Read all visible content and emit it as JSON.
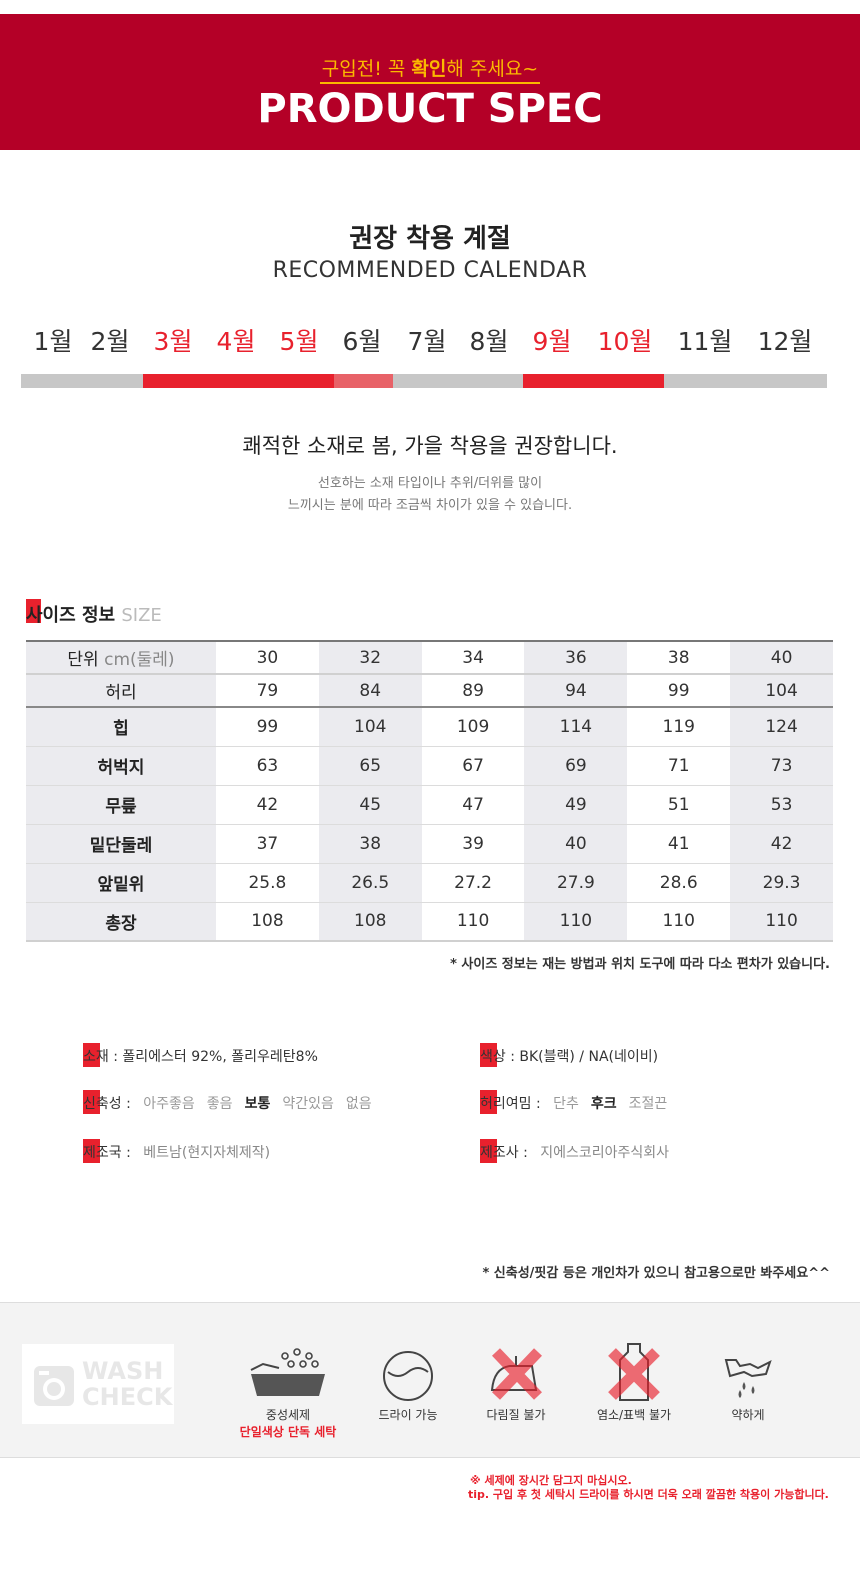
{
  "header": {
    "subtitle_a": "구입전! 꼭 ",
    "subtitle_b": "확인",
    "subtitle_c": "해 주세요~",
    "title": "PRODUCT SPEC"
  },
  "calendar": {
    "title": "권장 착용 계절",
    "subtitle": "RECOMMENDED CALENDAR",
    "months": [
      "1월",
      "2월",
      "3월",
      "4월",
      "5월",
      "6월",
      "7월",
      "8월",
      "9월",
      "10월",
      "11월",
      "12월"
    ],
    "active_months": [
      "3월",
      "4월",
      "5월",
      "9월",
      "10월"
    ],
    "colors": {
      "active": "#e8212d",
      "partial": "#e86268",
      "inactive": "#c7c7c7"
    }
  },
  "season": {
    "main": "쾌적한 소재로 봄, 가을 착용을 권장합니다.",
    "note_line1": "선호하는 소재 타입이나 추위/더위를 많이",
    "note_line2": "느끼시는 분에 따라 조금씩 차이가 있을 수 있습니다."
  },
  "size": {
    "label": "사이즈 정보",
    "label_en": "SIZE",
    "unit_label": "단위",
    "unit_value": "cm(둘레)",
    "columns": [
      "30",
      "32",
      "34",
      "36",
      "38",
      "40"
    ],
    "rows": [
      {
        "name": "허리",
        "values": [
          "79",
          "84",
          "89",
          "94",
          "99",
          "104"
        ]
      },
      {
        "name": "힙",
        "values": [
          "99",
          "104",
          "109",
          "114",
          "119",
          "124"
        ]
      },
      {
        "name": "허벅지",
        "values": [
          "63",
          "65",
          "67",
          "69",
          "71",
          "73"
        ]
      },
      {
        "name": "무릎",
        "values": [
          "42",
          "45",
          "47",
          "49",
          "51",
          "53"
        ]
      },
      {
        "name": "밑단둘레",
        "values": [
          "37",
          "38",
          "39",
          "40",
          "41",
          "42"
        ]
      },
      {
        "name": "앞밑위",
        "values": [
          "25.8",
          "26.5",
          "27.2",
          "27.9",
          "28.6",
          "29.3"
        ]
      },
      {
        "name": "총장",
        "values": [
          "108",
          "108",
          "110",
          "110",
          "110",
          "110"
        ]
      }
    ],
    "footnote": "* 사이즈 정보는 재는 방법과 위치 도구에 따라 다소 편차가 있습니다."
  },
  "material": {
    "fabric_label": "소재 :",
    "fabric_value": "폴리에스터 92%, 폴리우레탄8%",
    "color_label": "색상 :",
    "color_value": "BK(블랙) / NA(네이비)",
    "stretch_label": "신축성 :",
    "stretch_options": [
      "아주좋음",
      "좋음",
      "보통",
      "약간있음",
      "없음"
    ],
    "stretch_selected": "보통",
    "closure_label": "허리여밈 :",
    "closure_options": [
      "단추",
      "후크",
      "조절끈"
    ],
    "closure_selected": "후크",
    "origin_label": "제조국 :",
    "origin_value": "베트남(현지자체제작)",
    "maker_label": "제조사 :",
    "maker_value": "지에스코리아주식회사",
    "footnote": "* 신축성/핏감 등은 개인차가 있으니 참고용으로만 봐주세요^^"
  },
  "wash": {
    "logo_line1": "WASH",
    "logo_line2": "CHECK",
    "items": [
      {
        "icon": "detergent-basin-icon",
        "caption": "중성세제",
        "caption_red": "단일색상 단독 세탁"
      },
      {
        "icon": "dry-clean-icon",
        "caption": "드라이 가능"
      },
      {
        "icon": "no-iron-icon",
        "caption": "다림질 불가"
      },
      {
        "icon": "no-bleach-icon",
        "caption": "염소/표백 불가"
      },
      {
        "icon": "weak-wash-icon",
        "caption": "약하게"
      }
    ],
    "notice_line1": "※ 세제에 장시간 담그지 마십시오.",
    "notice_line2": "tip. 구입 후 첫 세탁시 드라이를 하시면 더욱 오래 깔끔한 착용이 가능합니다."
  }
}
